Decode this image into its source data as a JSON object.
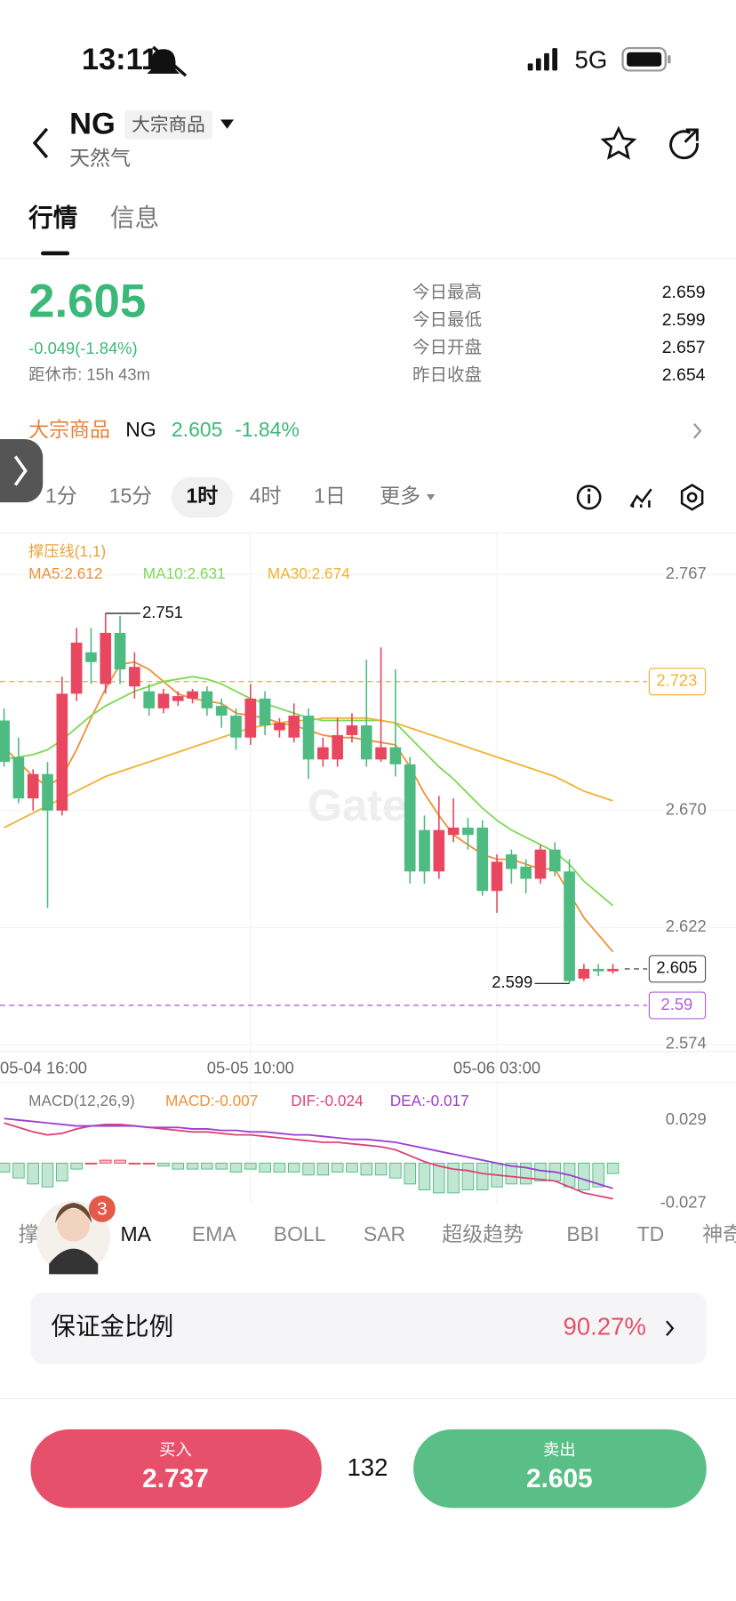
{
  "status_bar": {
    "time": "13:11",
    "network": "5G"
  },
  "header": {
    "symbol": "NG",
    "market": "大宗商品",
    "name": "天然气"
  },
  "tabs": [
    "行情",
    "信息"
  ],
  "quote": {
    "price": "2.605",
    "change": "-0.049(-1.84%)",
    "close_timer": "距休市: 15h 43m",
    "stats": [
      {
        "label": "今日最高",
        "value": "2.659"
      },
      {
        "label": "今日最低",
        "value": "2.599"
      },
      {
        "label": "今日开盘",
        "value": "2.657"
      },
      {
        "label": "昨日收盘",
        "value": "2.654"
      }
    ]
  },
  "banner": {
    "market": "大宗商品",
    "symbol": "NG",
    "price": "2.605",
    "change": "-1.84%"
  },
  "intervals": [
    "1分",
    "15分",
    "1时",
    "4时",
    "1日",
    "更多"
  ],
  "chart_data": [
    {
      "type": "candlestick",
      "legend_title": "撑压线(1,1)",
      "watermark": "Gate",
      "categories": [
        "05-04 16:00",
        null,
        null,
        null,
        null,
        null,
        null,
        null,
        null,
        null,
        null,
        null,
        null,
        null,
        null,
        null,
        null,
        "05-05 10:00",
        null,
        null,
        null,
        null,
        null,
        null,
        null,
        null,
        null,
        null,
        null,
        null,
        null,
        null,
        null,
        null,
        "05-06 03:00",
        null,
        null,
        null,
        null,
        null,
        null,
        null,
        null
      ],
      "open": [
        2.707,
        2.692,
        2.675,
        2.685,
        2.67,
        2.718,
        2.735,
        2.722,
        2.743,
        2.721,
        2.719,
        2.712,
        2.715,
        2.716,
        2.719,
        2.713,
        2.709,
        2.7,
        2.716,
        2.703,
        2.7,
        2.709,
        2.691,
        2.691,
        2.701,
        2.705,
        2.691,
        2.696,
        2.689,
        2.662,
        2.645,
        2.66,
        2.663,
        2.663,
        2.637,
        2.652,
        2.647,
        2.642,
        2.654,
        2.645,
        2.601,
        2.605,
        2.604
      ],
      "high": [
        2.712,
        2.7,
        2.687,
        2.69,
        2.725,
        2.745,
        2.745,
        2.751,
        2.75,
        2.735,
        2.722,
        2.72,
        2.719,
        2.72,
        2.721,
        2.716,
        2.712,
        2.722,
        2.719,
        2.708,
        2.714,
        2.712,
        2.7,
        2.708,
        2.71,
        2.732,
        2.737,
        2.728,
        2.692,
        2.668,
        2.676,
        2.675,
        2.667,
        2.666,
        2.652,
        2.654,
        2.65,
        2.656,
        2.657,
        2.65,
        2.607,
        2.607,
        2.607
      ],
      "low": [
        2.688,
        2.673,
        2.67,
        2.63,
        2.668,
        2.715,
        2.722,
        2.718,
        2.722,
        2.716,
        2.709,
        2.71,
        2.713,
        2.714,
        2.709,
        2.704,
        2.695,
        2.697,
        2.701,
        2.7,
        2.698,
        2.683,
        2.688,
        2.688,
        2.698,
        2.688,
        2.69,
        2.684,
        2.64,
        2.64,
        2.642,
        2.657,
        2.654,
        2.635,
        2.628,
        2.64,
        2.636,
        2.64,
        2.643,
        2.599,
        2.6,
        2.602,
        2.603
      ],
      "close": [
        2.69,
        2.675,
        2.685,
        2.67,
        2.718,
        2.739,
        2.731,
        2.743,
        2.728,
        2.729,
        2.712,
        2.718,
        2.717,
        2.719,
        2.712,
        2.709,
        2.7,
        2.716,
        2.705,
        2.706,
        2.709,
        2.691,
        2.696,
        2.701,
        2.705,
        2.691,
        2.696,
        2.689,
        2.645,
        2.645,
        2.662,
        2.663,
        2.66,
        2.637,
        2.649,
        2.646,
        2.642,
        2.654,
        2.645,
        2.6,
        2.605,
        2.604,
        2.605
      ],
      "up_color": "#e8475f",
      "down_color": "#4dbb82",
      "series": [
        {
          "name": "MA5:2.612",
          "color": "#f0903a",
          "values": [
            2.696,
            2.69,
            2.684,
            2.68,
            2.684,
            2.695,
            2.708,
            2.72,
            2.73,
            2.731,
            2.728,
            2.723,
            2.718,
            2.716,
            2.715,
            2.714,
            2.71,
            2.709,
            2.708,
            2.706,
            2.705,
            2.703,
            2.701,
            2.7,
            2.7,
            2.699,
            2.698,
            2.697,
            2.688,
            2.677,
            2.668,
            2.66,
            2.656,
            2.652,
            2.65,
            2.65,
            2.648,
            2.646,
            2.646,
            2.636,
            2.626,
            2.619,
            2.612
          ]
        },
        {
          "name": "MA10:2.631",
          "color": "#7ed957",
          "values": [
            2.691,
            2.692,
            2.693,
            2.695,
            2.699,
            2.704,
            2.709,
            2.713,
            2.716,
            2.719,
            2.721,
            2.723,
            2.724,
            2.725,
            2.724,
            2.722,
            2.719,
            2.716,
            2.714,
            2.712,
            2.71,
            2.708,
            2.707,
            2.707,
            2.707,
            2.707,
            2.707,
            2.706,
            2.7,
            2.694,
            2.688,
            2.683,
            2.677,
            2.671,
            2.666,
            2.662,
            2.659,
            2.656,
            2.653,
            2.648,
            2.641,
            2.636,
            2.631
          ]
        },
        {
          "name": "MA30:2.674",
          "color": "#f2b233",
          "values": [
            2.663,
            2.666,
            2.669,
            2.672,
            2.675,
            2.678,
            2.681,
            2.684,
            2.686,
            2.688,
            2.69,
            2.692,
            2.694,
            2.696,
            2.698,
            2.7,
            2.702,
            2.704,
            2.705,
            2.706,
            2.707,
            2.707,
            2.708,
            2.708,
            2.708,
            2.708,
            2.707,
            2.706,
            2.704,
            2.702,
            2.7,
            2.698,
            2.696,
            2.694,
            2.692,
            2.69,
            2.688,
            2.686,
            2.684,
            2.681,
            2.678,
            2.676,
            2.674
          ]
        }
      ],
      "ylim": [
        2.571,
        2.784
      ],
      "yticks": [
        2.767,
        {
          "value": 2.67,
          "label": "2.670"
        },
        2.622,
        2.574
      ],
      "grid": true,
      "levels": [
        {
          "value": 2.723,
          "color": "#f2b233"
        },
        {
          "value": 2.605,
          "color": "#555555"
        },
        {
          "value": 2.59,
          "color": "#b061d8"
        }
      ]
    },
    {
      "type": "macd",
      "title": "MACD(12,26,9)",
      "series": [
        {
          "name": "MACD:-0.007",
          "color": "#f0903a",
          "up_color": "#e8475f",
          "down_color": "#4dbb82",
          "values": [
            -0.006,
            -0.01,
            -0.014,
            -0.016,
            -0.012,
            -0.004,
            0.0,
            0.002,
            0.002,
            0.0,
            0.0,
            -0.002,
            -0.004,
            -0.004,
            -0.004,
            -0.004,
            -0.006,
            -0.004,
            -0.006,
            -0.006,
            -0.006,
            -0.008,
            -0.008,
            -0.006,
            -0.006,
            -0.008,
            -0.008,
            -0.01,
            -0.014,
            -0.018,
            -0.02,
            -0.02,
            -0.018,
            -0.018,
            -0.016,
            -0.014,
            -0.014,
            -0.012,
            -0.012,
            -0.016,
            -0.018,
            -0.016,
            -0.007
          ]
        },
        {
          "name": "DIF:-0.024",
          "color": "#e0407a",
          "values": [
            0.027,
            0.024,
            0.021,
            0.019,
            0.02,
            0.023,
            0.025,
            0.026,
            0.026,
            0.025,
            0.024,
            0.023,
            0.022,
            0.021,
            0.021,
            0.02,
            0.019,
            0.019,
            0.018,
            0.017,
            0.016,
            0.015,
            0.014,
            0.014,
            0.013,
            0.012,
            0.011,
            0.009,
            0.005,
            0.001,
            -0.002,
            -0.004,
            -0.005,
            -0.007,
            -0.008,
            -0.009,
            -0.01,
            -0.011,
            -0.012,
            -0.016,
            -0.02,
            -0.022,
            -0.024
          ]
        },
        {
          "name": "DEA:-0.017",
          "color": "#9b3fd1",
          "values": [
            0.03,
            0.029,
            0.028,
            0.027,
            0.026,
            0.025,
            0.025,
            0.025,
            0.025,
            0.025,
            0.024,
            0.024,
            0.024,
            0.023,
            0.023,
            0.022,
            0.022,
            0.021,
            0.021,
            0.02,
            0.019,
            0.019,
            0.018,
            0.017,
            0.016,
            0.016,
            0.015,
            0.014,
            0.012,
            0.01,
            0.008,
            0.006,
            0.004,
            0.002,
            0.0,
            -0.002,
            -0.003,
            -0.005,
            -0.006,
            -0.008,
            -0.011,
            -0.014,
            -0.017
          ]
        }
      ],
      "ylim": [
        -0.028,
        0.053
      ],
      "yticks": [
        0.029,
        -0.027
      ]
    }
  ],
  "indicators": [
    "撑",
    "MA",
    "EMA",
    "BOLL",
    "SAR",
    "超级趋势",
    "BBI",
    "TD",
    "神奇"
  ],
  "badge": "3",
  "margin": {
    "label": "保证金比例",
    "value": "90.27%"
  },
  "trade": {
    "buy": {
      "label": "买入",
      "price": "2.737"
    },
    "quantity": "132",
    "sell": {
      "label": "卖出",
      "price": "2.605"
    }
  }
}
